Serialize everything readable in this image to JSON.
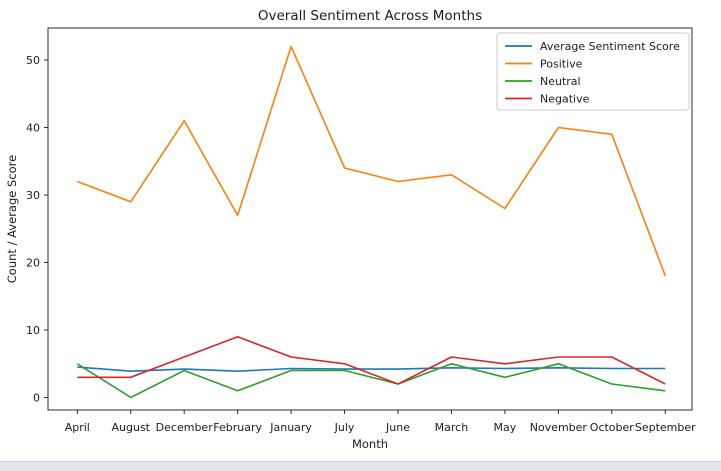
{
  "chart_data": {
    "type": "line",
    "title": "Overall Sentiment Across Months",
    "xlabel": "Month",
    "ylabel": "Count / Average Score",
    "categories": [
      "April",
      "August",
      "December",
      "February",
      "January",
      "July",
      "June",
      "March",
      "May",
      "November",
      "October",
      "September"
    ],
    "yticks": [
      0,
      10,
      20,
      30,
      40,
      50
    ],
    "ylim": [
      -2,
      55
    ],
    "grid": false,
    "legend_position": "upper right",
    "series": [
      {
        "name": "Average Sentiment Score",
        "color": "#1f77b4",
        "values": [
          4.5,
          3.9,
          4.2,
          3.9,
          4.3,
          4.2,
          4.2,
          4.4,
          4.3,
          4.4,
          4.3,
          4.3
        ]
      },
      {
        "name": "Positive",
        "color": "#ff7f0e",
        "values": [
          32,
          29,
          41,
          27,
          52,
          34,
          32,
          33,
          28,
          40,
          39,
          18
        ]
      },
      {
        "name": "Neutral",
        "color": "#2ca02c",
        "values": [
          5,
          0,
          4,
          1,
          4,
          4,
          2,
          5,
          3,
          5,
          2,
          1
        ]
      },
      {
        "name": "Negative",
        "color": "#d62728",
        "values": [
          3,
          3,
          6,
          9,
          6,
          5,
          2,
          6,
          5,
          6,
          6,
          2
        ]
      }
    ],
    "spine_color": "#2b2b2b",
    "text_color": "#1c1c1c"
  }
}
